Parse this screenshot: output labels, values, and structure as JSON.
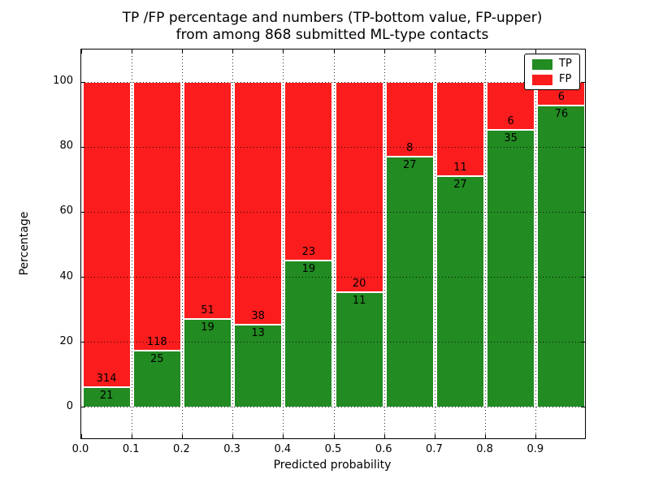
{
  "title": {
    "line1": "TP /FP percentage and numbers (TP-bottom value, FP-upper)",
    "line2": "from among 868 submitted ML-type contacts"
  },
  "axes": {
    "xlabel": "Predicted probability",
    "ylabel": "Percentage",
    "x_tick_labels": [
      "0.0",
      "0.1",
      "0.2",
      "0.3",
      "0.4",
      "0.5",
      "0.6",
      "0.7",
      "0.8",
      "0.9"
    ],
    "y_tick_labels": [
      "0",
      "20",
      "40",
      "60",
      "80",
      "100"
    ],
    "xlim": [
      0,
      1
    ],
    "ylim": [
      -10,
      110
    ],
    "grid": true,
    "grid_style": "dotted"
  },
  "legend": {
    "position": "upper-right",
    "items": [
      {
        "label": "TP",
        "color": "#228b22"
      },
      {
        "label": "FP",
        "color": "#fb1d1d"
      }
    ]
  },
  "chart_data": {
    "type": "bar",
    "stacked": true,
    "normalized": "each bar stacks to 100%",
    "total_contacts": 868,
    "bin_width": 0.1,
    "categories": [
      0.0,
      0.1,
      0.2,
      0.3,
      0.4,
      0.5,
      0.6,
      0.7,
      0.8,
      0.9
    ],
    "series": [
      {
        "name": "TP",
        "color": "#228b22",
        "counts": [
          21,
          25,
          19,
          13,
          19,
          11,
          27,
          27,
          35,
          76
        ]
      },
      {
        "name": "FP",
        "color": "#fb1d1d",
        "counts": [
          314,
          118,
          51,
          38,
          23,
          20,
          8,
          11,
          6,
          6
        ]
      }
    ],
    "tp_percent": [
      6.3,
      17.5,
      27.1,
      25.5,
      45.2,
      35.5,
      77.1,
      71.1,
      85.4,
      92.7
    ],
    "bar_edge_color": "#ffffff"
  }
}
